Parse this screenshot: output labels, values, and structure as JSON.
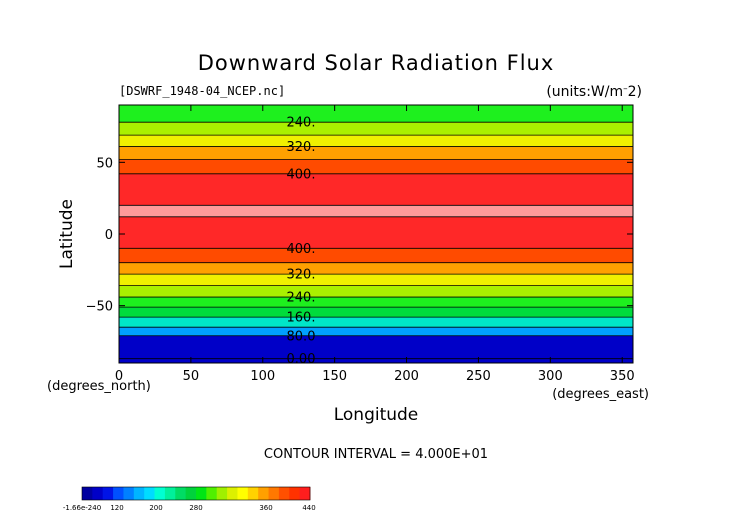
{
  "chart_data": {
    "type": "heatmap",
    "title": "Downward Solar Radiation Flux",
    "subtitle_left": "[DSWRF_1948-04_NCEP.nc]",
    "subtitle_right": "(units:W/m^2)",
    "xlabel": "Longitude",
    "ylabel": "Latitude",
    "x_unit_label": "(degrees_east)",
    "y_unit_label": "(degrees_north)",
    "xlim": [
      0,
      357.5
    ],
    "ylim": [
      -90,
      90
    ],
    "x_ticks": [
      0,
      50,
      100,
      150,
      200,
      250,
      300,
      350
    ],
    "y_ticks": [
      -50,
      0,
      50
    ],
    "footer": "CONTOUR INTERVAL = 4.000E+01",
    "contour_interval": 40,
    "latitude_bands": [
      {
        "lat_from": 90,
        "lat_to": 78,
        "level": 240
      },
      {
        "lat_from": 78,
        "lat_to": 69,
        "level": 280
      },
      {
        "lat_from": 69,
        "lat_to": 61,
        "level": 320
      },
      {
        "lat_from": 61,
        "lat_to": 52,
        "level": 360
      },
      {
        "lat_from": 52,
        "lat_to": 42,
        "level": 400
      },
      {
        "lat_from": 42,
        "lat_to": 20,
        "level": 440
      },
      {
        "lat_from": 20,
        "lat_to": 12,
        "level": 480
      },
      {
        "lat_from": 12,
        "lat_to": -10,
        "level": 440
      },
      {
        "lat_from": -10,
        "lat_to": -20,
        "level": 400
      },
      {
        "lat_from": -20,
        "lat_to": -28,
        "level": 360
      },
      {
        "lat_from": -28,
        "lat_to": -36,
        "level": 320
      },
      {
        "lat_from": -36,
        "lat_to": -44,
        "level": 280
      },
      {
        "lat_from": -44,
        "lat_to": -51,
        "level": 240
      },
      {
        "lat_from": -51,
        "lat_to": -58,
        "level": 200
      },
      {
        "lat_from": -58,
        "lat_to": -65,
        "level": 160
      },
      {
        "lat_from": -65,
        "lat_to": -71,
        "level": 120
      },
      {
        "lat_from": -71,
        "lat_to": -90,
        "level": 0
      }
    ],
    "contour_lines": [
      {
        "lat": 78,
        "label": "240."
      },
      {
        "lat": 69,
        "label": ""
      },
      {
        "lat": 61,
        "label": "320."
      },
      {
        "lat": 52,
        "label": ""
      },
      {
        "lat": 42,
        "label": "400."
      },
      {
        "lat": 20,
        "label": ""
      },
      {
        "lat": 12,
        "label": ""
      },
      {
        "lat": -10,
        "label": "400."
      },
      {
        "lat": -20,
        "label": ""
      },
      {
        "lat": -28,
        "label": "320."
      },
      {
        "lat": -36,
        "label": ""
      },
      {
        "lat": -44,
        "label": "240."
      },
      {
        "lat": -51,
        "label": ""
      },
      {
        "lat": -58,
        "label": "160."
      },
      {
        "lat": -65,
        "label": ""
      },
      {
        "lat": -71,
        "label": "80.0"
      },
      {
        "lat": -87,
        "label": "0.00"
      }
    ],
    "level_colors": {
      "0": "#0000c8",
      "120": "#00a0ff",
      "160": "#00e6c8",
      "200": "#00dc3c",
      "240": "#1ef01e",
      "280": "#aaf000",
      "320": "#f0f000",
      "360": "#ffa000",
      "400": "#ff4b00",
      "440": "#ff2828",
      "480": "#ff9a9a"
    },
    "colorbar": {
      "tick_labels": [
        "-1.66e-240",
        "120",
        "200",
        "280",
        "360",
        "440"
      ],
      "min": 0,
      "max": 440,
      "colors": [
        "#0000a0",
        "#0000c8",
        "#0014e6",
        "#0050ff",
        "#0080ff",
        "#00b4ff",
        "#00dcff",
        "#00ffd2",
        "#00f09b",
        "#00dc64",
        "#00d23c",
        "#00e614",
        "#50f000",
        "#a0f000",
        "#dcf000",
        "#ffff00",
        "#ffd200",
        "#ffa000",
        "#ff7800",
        "#ff5000",
        "#ff3200",
        "#ff1e1e"
      ]
    }
  }
}
